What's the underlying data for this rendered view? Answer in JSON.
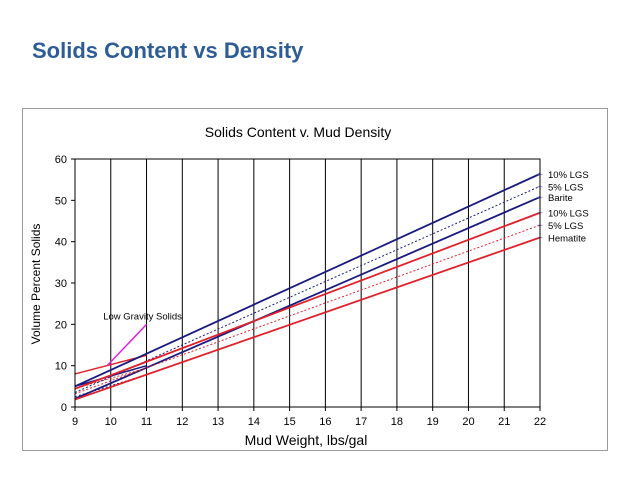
{
  "slide": {
    "title": "Solids Content vs Density"
  },
  "chart_data": {
    "type": "line",
    "title": "Solids Content v. Mud Density",
    "xlabel": "Mud Weight, lbs/gal",
    "ylabel": "Volume Percent Solids",
    "xlim": [
      9,
      22
    ],
    "ylim": [
      0,
      60
    ],
    "xticks": [
      9,
      10,
      11,
      12,
      13,
      14,
      15,
      16,
      17,
      18,
      19,
      20,
      21,
      22
    ],
    "yticks": [
      0,
      10,
      20,
      30,
      40,
      50,
      60
    ],
    "grid": "vertical",
    "colors": {
      "barite": "#1a1a80",
      "hematite": "#e0202a",
      "lgs": "#e020e0",
      "marker": "#7070cc"
    },
    "series": [
      {
        "name": "10% LGS",
        "group": "barite",
        "style": "solid",
        "x": [
          9,
          22
        ],
        "y": [
          5.0,
          56.4
        ]
      },
      {
        "name": "5% LGS",
        "group": "barite",
        "style": "dotted",
        "x": [
          9,
          22
        ],
        "y": [
          3.5,
          53.4
        ]
      },
      {
        "name": "Barite",
        "group": "barite",
        "style": "solid",
        "x": [
          9,
          22
        ],
        "y": [
          2.0,
          50.8
        ]
      },
      {
        "name": "10% LGS",
        "group": "hematite",
        "style": "solid",
        "x": [
          9,
          22
        ],
        "y": [
          4.4,
          47.0
        ]
      },
      {
        "name": "5% LGS",
        "group": "hematite",
        "style": "dotted",
        "x": [
          9,
          22
        ],
        "y": [
          3.2,
          44.0
        ]
      },
      {
        "name": "Hematite",
        "group": "hematite",
        "style": "solid",
        "x": [
          9,
          22
        ],
        "y": [
          1.8,
          41.0
        ]
      },
      {
        "name": "Low Gravity Solids",
        "group": "lgs",
        "style": "solid",
        "x": [
          9.9,
          11.0
        ],
        "y": [
          10.0,
          20.0
        ]
      }
    ],
    "guide_lines": [
      {
        "group": "barite",
        "style": "solid",
        "x": [
          9,
          11
        ],
        "y": [
          5.0,
          10.0
        ]
      },
      {
        "group": "hematite",
        "style": "solid",
        "x": [
          9,
          11
        ],
        "y": [
          8.0,
          12.5
        ]
      },
      {
        "group": "barite",
        "style": "dotted",
        "x": [
          9,
          11
        ],
        "y": [
          2.5,
          7.8
        ]
      },
      {
        "group": "hematite",
        "style": "dotted",
        "x": [
          9,
          11
        ],
        "y": [
          4.5,
          9.4
        ]
      }
    ],
    "annotations": [
      {
        "text": "Low Gravity Solids",
        "x": 9.9,
        "y": 20.5
      }
    ]
  }
}
